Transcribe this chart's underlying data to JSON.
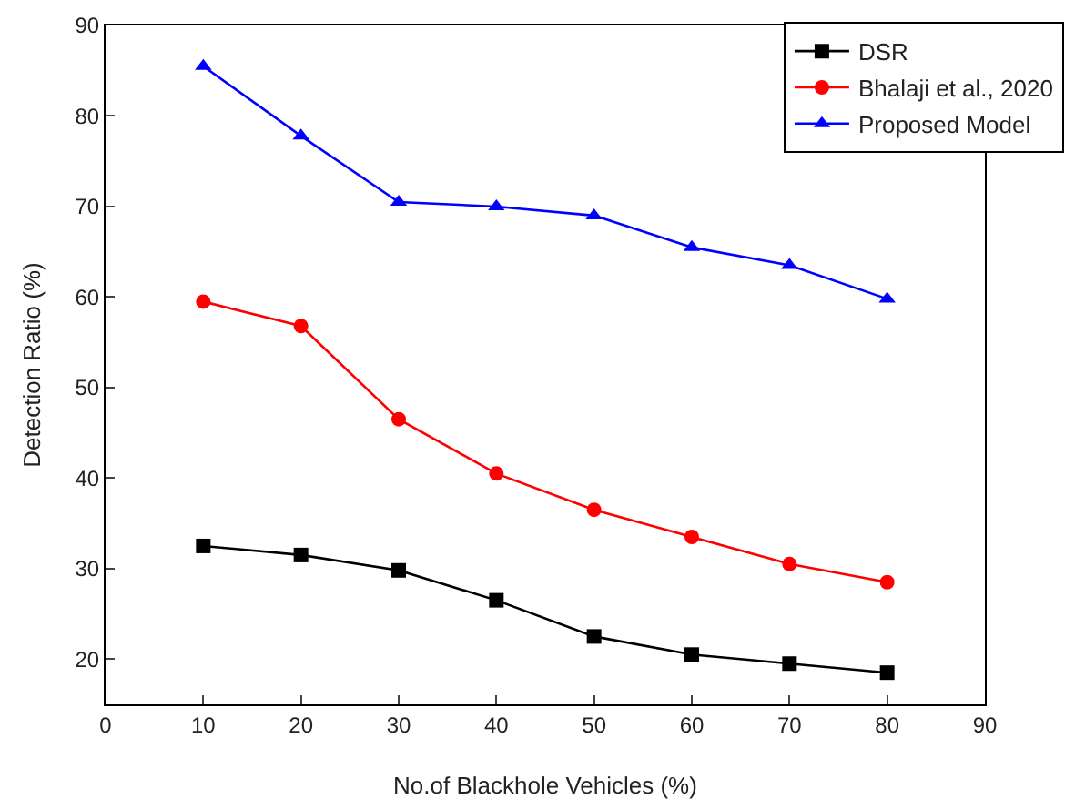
{
  "chart_data": {
    "type": "line",
    "xlabel": "No.of Blackhole Vehicles (%)",
    "ylabel": "Detection Ratio (%)",
    "x": [
      10,
      20,
      30,
      40,
      50,
      60,
      70,
      80
    ],
    "xlim": [
      0,
      90
    ],
    "xticks": [
      0,
      10,
      20,
      30,
      40,
      50,
      60,
      70,
      80,
      90
    ],
    "ylim": [
      15,
      90
    ],
    "yticks": [
      20,
      30,
      40,
      50,
      60,
      70,
      80,
      90
    ],
    "grid": false,
    "legend": "top right",
    "line_style": "solid",
    "series": [
      {
        "name": "DSR",
        "color": "#000000",
        "marker": "square",
        "values": [
          32.5,
          31.5,
          29.8,
          26.5,
          22.5,
          20.5,
          19.5,
          18.5
        ]
      },
      {
        "name": "Bhalaji et al., 2020",
        "color": "#ff0000",
        "marker": "circle",
        "values": [
          59.5,
          56.8,
          46.5,
          40.5,
          36.5,
          33.5,
          30.5,
          28.5
        ]
      },
      {
        "name": "Proposed Model",
        "color": "#0000ff",
        "marker": "triangle",
        "values": [
          85.5,
          77.8,
          70.5,
          70,
          69,
          65.5,
          63.5,
          59.8
        ]
      }
    ]
  }
}
